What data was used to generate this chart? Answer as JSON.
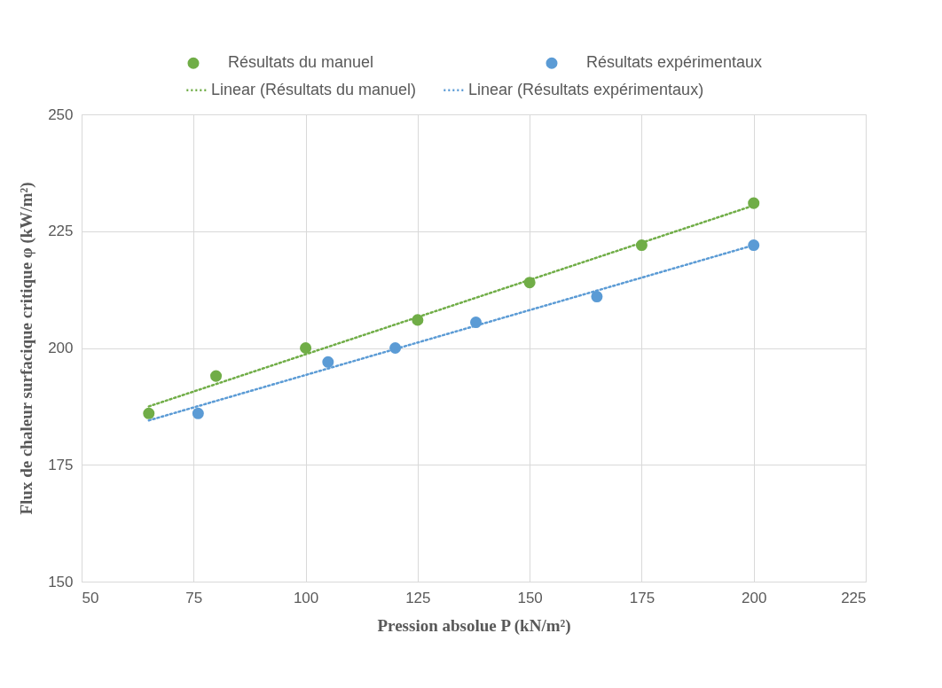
{
  "chart_data": {
    "type": "scatter",
    "xlabel": "Pression absolue P (kN/m²)",
    "ylabel": "Flux de chaleur surfacique critique φ (kW/m²)",
    "xlim": [
      50,
      225
    ],
    "xticks": [
      50,
      75,
      100,
      125,
      150,
      175,
      200,
      225
    ],
    "ylim": [
      150,
      250
    ],
    "yticks": [
      150,
      175,
      200,
      225,
      250
    ],
    "grid": true,
    "legend": "top",
    "series": [
      {
        "name": "Résultats du manuel",
        "marker": "circle",
        "color": "#70ad47",
        "x": [
          65,
          80,
          100,
          125,
          150,
          175,
          200
        ],
        "values": [
          186,
          194,
          200,
          206,
          214,
          222,
          231
        ]
      },
      {
        "name": "Résultats expérimentaux",
        "marker": "circle",
        "color": "#5b9bd5",
        "x": [
          76,
          105,
          120,
          138,
          165,
          200
        ],
        "values": [
          186,
          197,
          200,
          205.5,
          211,
          222
        ]
      },
      {
        "name": "Linear (Résultats du manuel)",
        "type": "line",
        "line_style": "dotted",
        "color": "#70ad47",
        "x": [
          65,
          200
        ],
        "values": [
          187.5,
          230.5
        ]
      },
      {
        "name": "Linear (Résultats expérimentaux)",
        "type": "line",
        "line_style": "dotted",
        "color": "#5b9bd5",
        "x": [
          65,
          200
        ],
        "values": [
          184.5,
          222
        ]
      }
    ]
  }
}
